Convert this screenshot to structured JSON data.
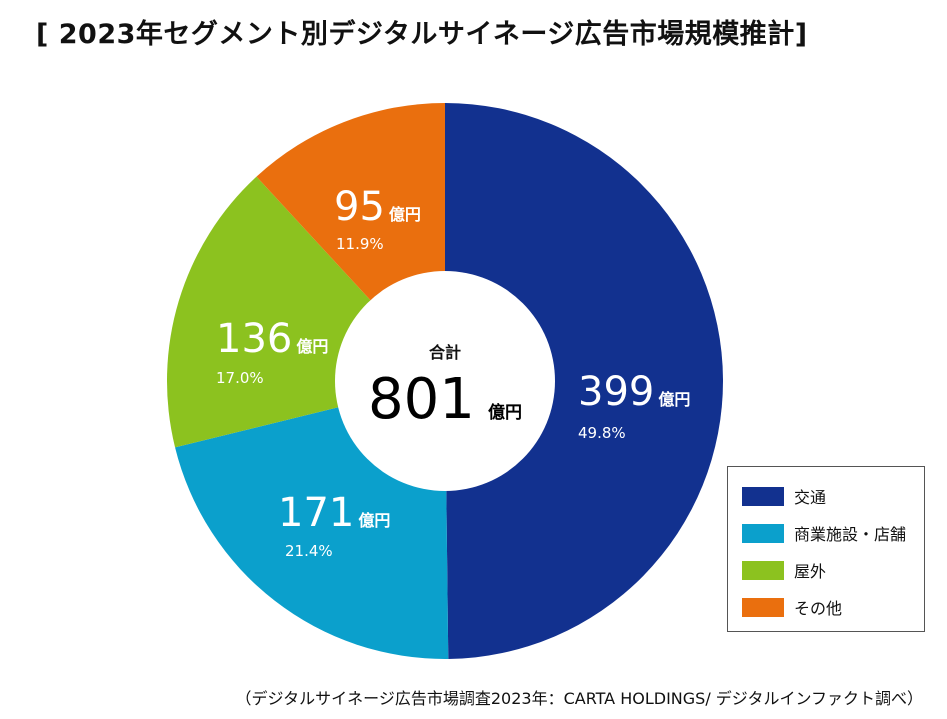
{
  "title": "[ 2023年セグメント別デジタルサイネージ広告市場規模推計]",
  "chart_data": {
    "type": "pie",
    "title": "[ 2023年セグメント別デジタルサイネージ広告市場規模推計]",
    "unit": "億円",
    "categories": [
      "交通",
      "商業施設・店舗",
      "屋外",
      "その他"
    ],
    "values": [
      399,
      171,
      136,
      95
    ],
    "value_labels": [
      "399",
      "171",
      "136",
      "95"
    ],
    "percent_labels": [
      "49.8%",
      "21.4%",
      "17.0%",
      "11.9%"
    ],
    "colors": [
      "#12318f",
      "#0ba0cc",
      "#8cc21f",
      "#ea6f0e"
    ],
    "center_label": "合計",
    "total": "801",
    "legend_position": "bottom-right"
  },
  "source_note": "（デジタルサイネージ広告市場調査2023年：CARTA HOLDINGS/ デジタルインファクト調べ）"
}
